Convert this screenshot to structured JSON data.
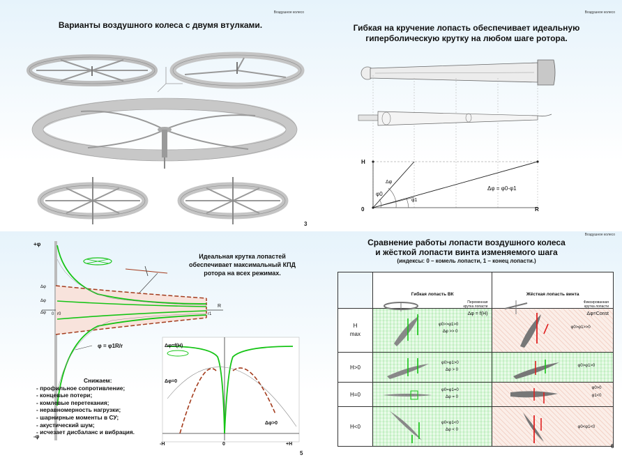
{
  "slide3": {
    "header": "Воздушное колесо",
    "title": "Варианты воздушного колеса с двумя втулками.",
    "page_number": "3"
  },
  "slide4": {
    "header": "Воздушное колесо",
    "title_line1": "Гибкая на кручение лопасть обеспечивает идеальную",
    "title_line2": "гиперболическую крутку на любом шаге ротора.",
    "label_H": "H",
    "label_0": "0",
    "label_R": "R",
    "label_phi0": "φ0",
    "label_dphi": "Δφ",
    "label_phi1": "φ1",
    "formula": "Δφ = φ0-φ1"
  },
  "slide5": {
    "note_line1": "Идеальная крутка лопастей",
    "note_line2": "обеспечивает максимальный КПД",
    "note_line3": "ротора на всех режимах.",
    "axis_plus_phi": "+φ",
    "axis_minus_phi": "-φ",
    "dphi1": "Δφ",
    "dphi2": "Δφ",
    "dphi3": "Δφ",
    "r0": "r0",
    "r1": "r1",
    "R": "R",
    "zero": "0",
    "formula": "φ = φ1R/r",
    "inset_f": "Δφ=f(H)",
    "inset_zero": "Δφ=0",
    "inset_pos": "Δφ>0",
    "inset_minusH": "-H",
    "inset_0": "0",
    "inset_plusH": "+H",
    "list_title": "Снижаем:",
    "list": [
      "- профильное сопротивление;",
      "- концевые потери;",
      "- комлевые перетекания;",
      "- неравномерность нагрузки;",
      "- шарнирные моменты в СУ;",
      "- акустический шум;",
      "- исчезает дисбаланс и вибрация."
    ],
    "page_number": "5"
  },
  "slide6": {
    "header": "Воздушное колесо",
    "title_line1": "Сравнение работы лопасти воздушного колеса",
    "title_line2": "и жёсткой лопасти винта изменяемого шага",
    "subtitle": "(индексы: 0 – комель лопасти, 1 – конец лопасти.)",
    "col1": "Гибкая лопасть ВК",
    "col1_sub1": "Переменная",
    "col1_sub2": "крутка лопасти",
    "col1_formula": "Δφ = f(H)",
    "col2": "Жёсткая лопасть винта",
    "col2_sub1": "Фиксированная",
    "col2_sub2": "крутка лопасти",
    "col2_formula": "Δφ=Const",
    "rows": [
      {
        "label1": "H",
        "label2": "max",
        "f1": "φ0>>φ1>0",
        "f2": "Δφ >> 0",
        "r1": "φ0>φ1>>0",
        "r2": ""
      },
      {
        "label1": "H>0",
        "label2": "",
        "f1": "φ0>φ1>0",
        "f2": "Δφ > 0",
        "r1": "φ0>φ1>0",
        "r2": ""
      },
      {
        "label1": "H=0",
        "label2": "",
        "f1": "φ0=φ1=0",
        "f2": "Δφ = 0",
        "r1": "φ0>0",
        "r2": "φ1<0"
      },
      {
        "label1": "H<0",
        "label2": "",
        "f1": "φ0<φ1<0",
        "f2": "Δφ < 0",
        "r1": "φ0<φ1<0",
        "r2": ""
      }
    ],
    "page_number": "6"
  }
}
